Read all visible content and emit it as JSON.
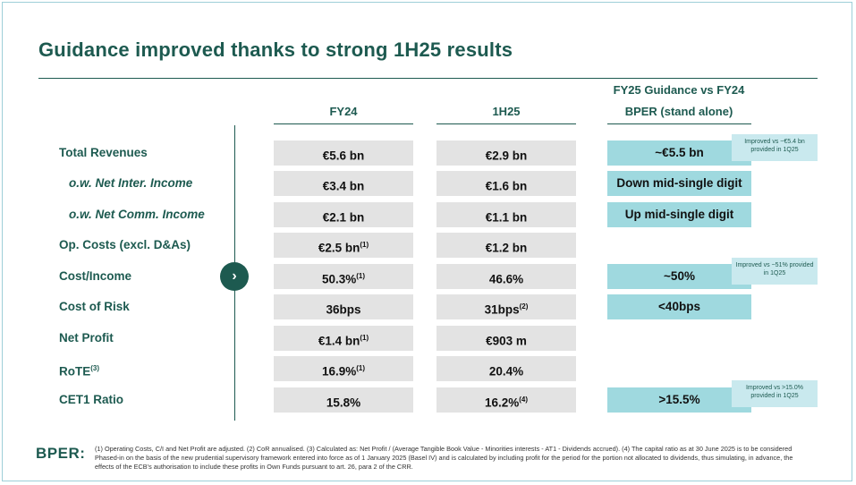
{
  "title": "Guidance improved thanks to strong 1H25 results",
  "columns": {
    "fy24": "FY24",
    "h125": "1H25",
    "guidance_line1": "FY25  Guidance vs FY24",
    "guidance_line2": "BPER (stand alone)"
  },
  "rows": [
    {
      "label": "Total Revenues",
      "fy24": "€5.6 bn",
      "fy24_sup": "",
      "h125": "€2.9 bn",
      "h125_sup": "",
      "guidance": "~€5.5 bn"
    },
    {
      "label": "o.w. Net Inter. Income",
      "fy24": "€3.4 bn",
      "fy24_sup": "",
      "h125": "€1.6 bn",
      "h125_sup": "",
      "guidance": "Down mid-single digit"
    },
    {
      "label": "o.w. Net Comm. Income",
      "fy24": "€2.1 bn",
      "fy24_sup": "",
      "h125": "€1.1 bn",
      "h125_sup": "",
      "guidance": "Up mid-single digit"
    },
    {
      "label": "Op. Costs (excl. D&As)",
      "fy24": "€2.5 bn",
      "fy24_sup": "(1)",
      "h125": "€1.2 bn",
      "h125_sup": "",
      "guidance": ""
    },
    {
      "label": "Cost/Income",
      "fy24": "50.3%",
      "fy24_sup": "(1)",
      "h125": "46.6%",
      "h125_sup": "",
      "guidance": "~50%"
    },
    {
      "label": "Cost of Risk",
      "fy24": "36bps",
      "fy24_sup": "",
      "h125": "31bps",
      "h125_sup": "(2)",
      "guidance": "<40bps"
    },
    {
      "label": "Net Profit",
      "fy24": "€1.4 bn",
      "fy24_sup": "(1)",
      "h125": "€903 m",
      "h125_sup": "",
      "guidance": ""
    },
    {
      "label": "RoTE",
      "label_sup": "(3)",
      "fy24": "16.9%",
      "fy24_sup": "(1)",
      "h125": "20.4%",
      "h125_sup": "",
      "guidance": ""
    },
    {
      "label": "CET1 Ratio",
      "fy24": "15.8%",
      "fy24_sup": "",
      "h125": "16.2%",
      "h125_sup": "(4)",
      "guidance": ">15.5%"
    }
  ],
  "notes": {
    "revenues": "Improved vs ~€5.4 bn provided in 1Q25",
    "cost_income": "Improved vs ~51% provided in 1Q25",
    "cet1": "Improved vs >15.0% provided in 1Q25"
  },
  "arrow_glyph": "›",
  "logo": "BPER:",
  "footnote": "(1) Operating Costs, C/I and Net Profit are adjusted.   (2) CoR annualised.   (3) Calculated as: Net Profit / (Average Tangible Book Value - Minorities interests - AT1 - Dividends accrued).   (4) The capital ratio as at 30 June 2025 is to be considered Phased-in on the basis of the new prudential supervisory framework entered into force as of 1 January 2025 (Basel IV) and is calculated by including profit for the period for the portion not allocated to dividends, thus simulating, in advance, the effects of the ECB's authorisation to include these profits in Own Funds pursuant to art. 26, para 2 of the CRR.",
  "colors": {
    "brand": "#1d5a50",
    "cell_bg": "#e3e3e3",
    "guidance_bg": "#9fd9df",
    "note_bg": "#c9e9ee"
  }
}
